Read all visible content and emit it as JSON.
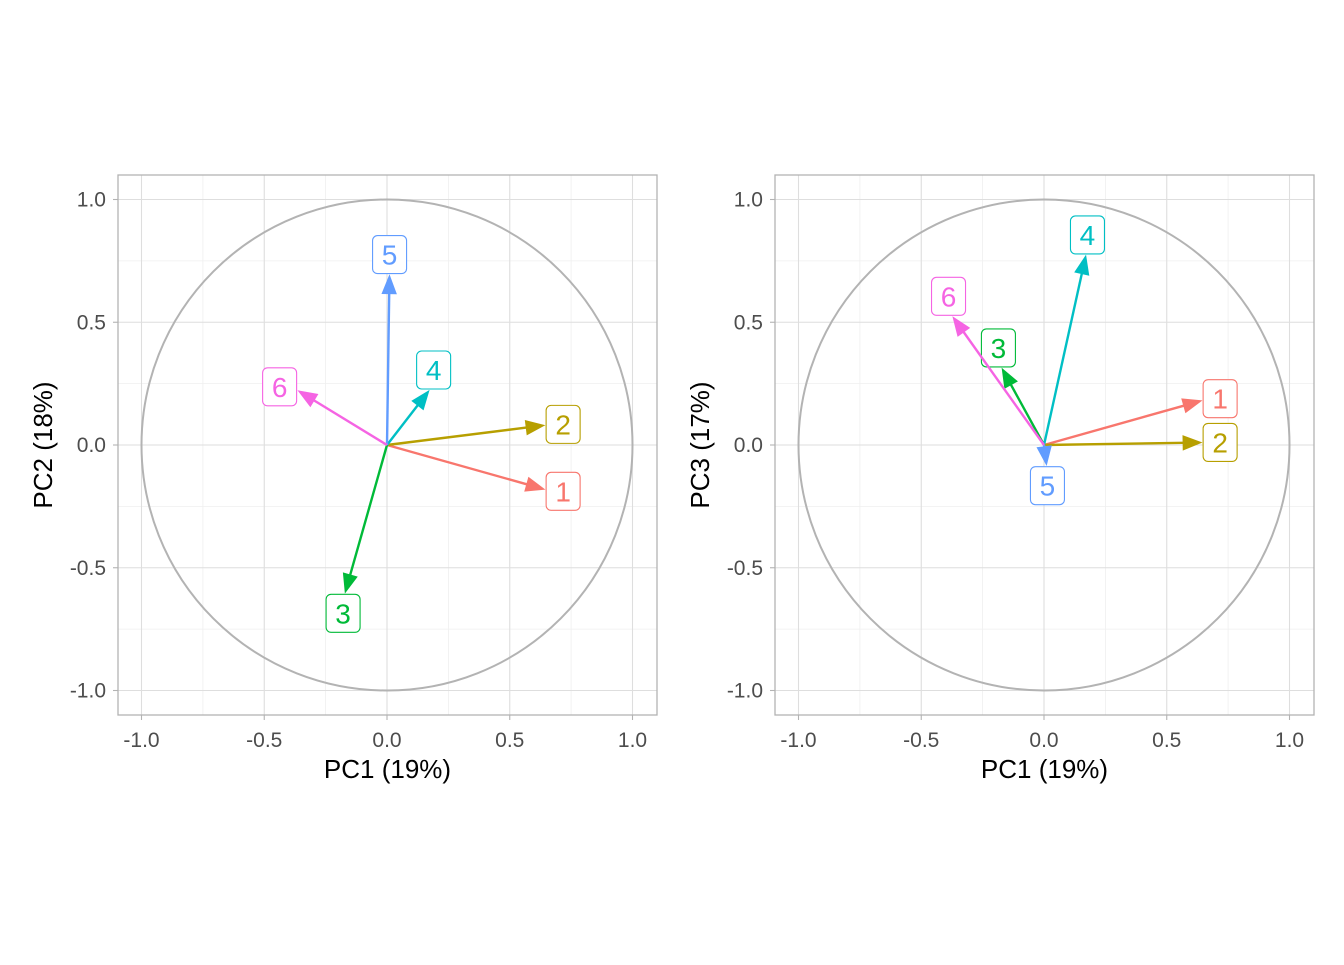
{
  "chart_data": [
    {
      "type": "vector-correlation-circle",
      "xlabel": "PC1 (19%)",
      "ylabel": "PC2 (18%)",
      "xlim": [
        -1.0,
        1.0
      ],
      "ylim": [
        -1.0,
        1.0
      ],
      "x_ticks": [
        "-1.0",
        "-0.5",
        "0.0",
        "0.5",
        "1.0"
      ],
      "y_ticks": [
        "-1.0",
        "-0.5",
        "0.0",
        "0.5",
        "1.0"
      ],
      "grid": true,
      "unit_circle": true,
      "series": [
        {
          "name": "1",
          "x": 0.64,
          "y": -0.18,
          "color": "#F8766D"
        },
        {
          "name": "2",
          "x": 0.64,
          "y": 0.08,
          "color": "#B79F00"
        },
        {
          "name": "3",
          "x": -0.17,
          "y": -0.6,
          "color": "#00BA38"
        },
        {
          "name": "4",
          "x": 0.17,
          "y": 0.22,
          "color": "#00BFC4"
        },
        {
          "name": "5",
          "x": 0.01,
          "y": 0.69,
          "color": "#619CFF"
        },
        {
          "name": "6",
          "x": -0.36,
          "y": 0.22,
          "color": "#F564E3"
        }
      ]
    },
    {
      "type": "vector-correlation-circle",
      "xlabel": "PC1 (19%)",
      "ylabel": "PC3 (17%)",
      "xlim": [
        -1.0,
        1.0
      ],
      "ylim": [
        -1.0,
        1.0
      ],
      "x_ticks": [
        "-1.0",
        "-0.5",
        "0.0",
        "0.5",
        "1.0"
      ],
      "y_ticks": [
        "-1.0",
        "-0.5",
        "0.0",
        "0.5",
        "1.0"
      ],
      "grid": true,
      "unit_circle": true,
      "series": [
        {
          "name": "1",
          "x": 0.64,
          "y": 0.18,
          "color": "#F8766D"
        },
        {
          "name": "2",
          "x": 0.64,
          "y": 0.01,
          "color": "#B79F00"
        },
        {
          "name": "3",
          "x": -0.17,
          "y": 0.31,
          "color": "#00BA38"
        },
        {
          "name": "4",
          "x": 0.17,
          "y": 0.77,
          "color": "#00BFC4"
        },
        {
          "name": "5",
          "x": 0.01,
          "y": -0.08,
          "color": "#619CFF"
        },
        {
          "name": "6",
          "x": -0.37,
          "y": 0.52,
          "color": "#F564E3"
        }
      ]
    }
  ],
  "colors": {
    "panel_border": "#B3B3B3",
    "grid_major": "#DEDEDE",
    "grid_minor": "#EFEFEF",
    "circle": "#B3B3B3",
    "tick_text": "#4D4D4D",
    "axis_title": "#000000"
  }
}
